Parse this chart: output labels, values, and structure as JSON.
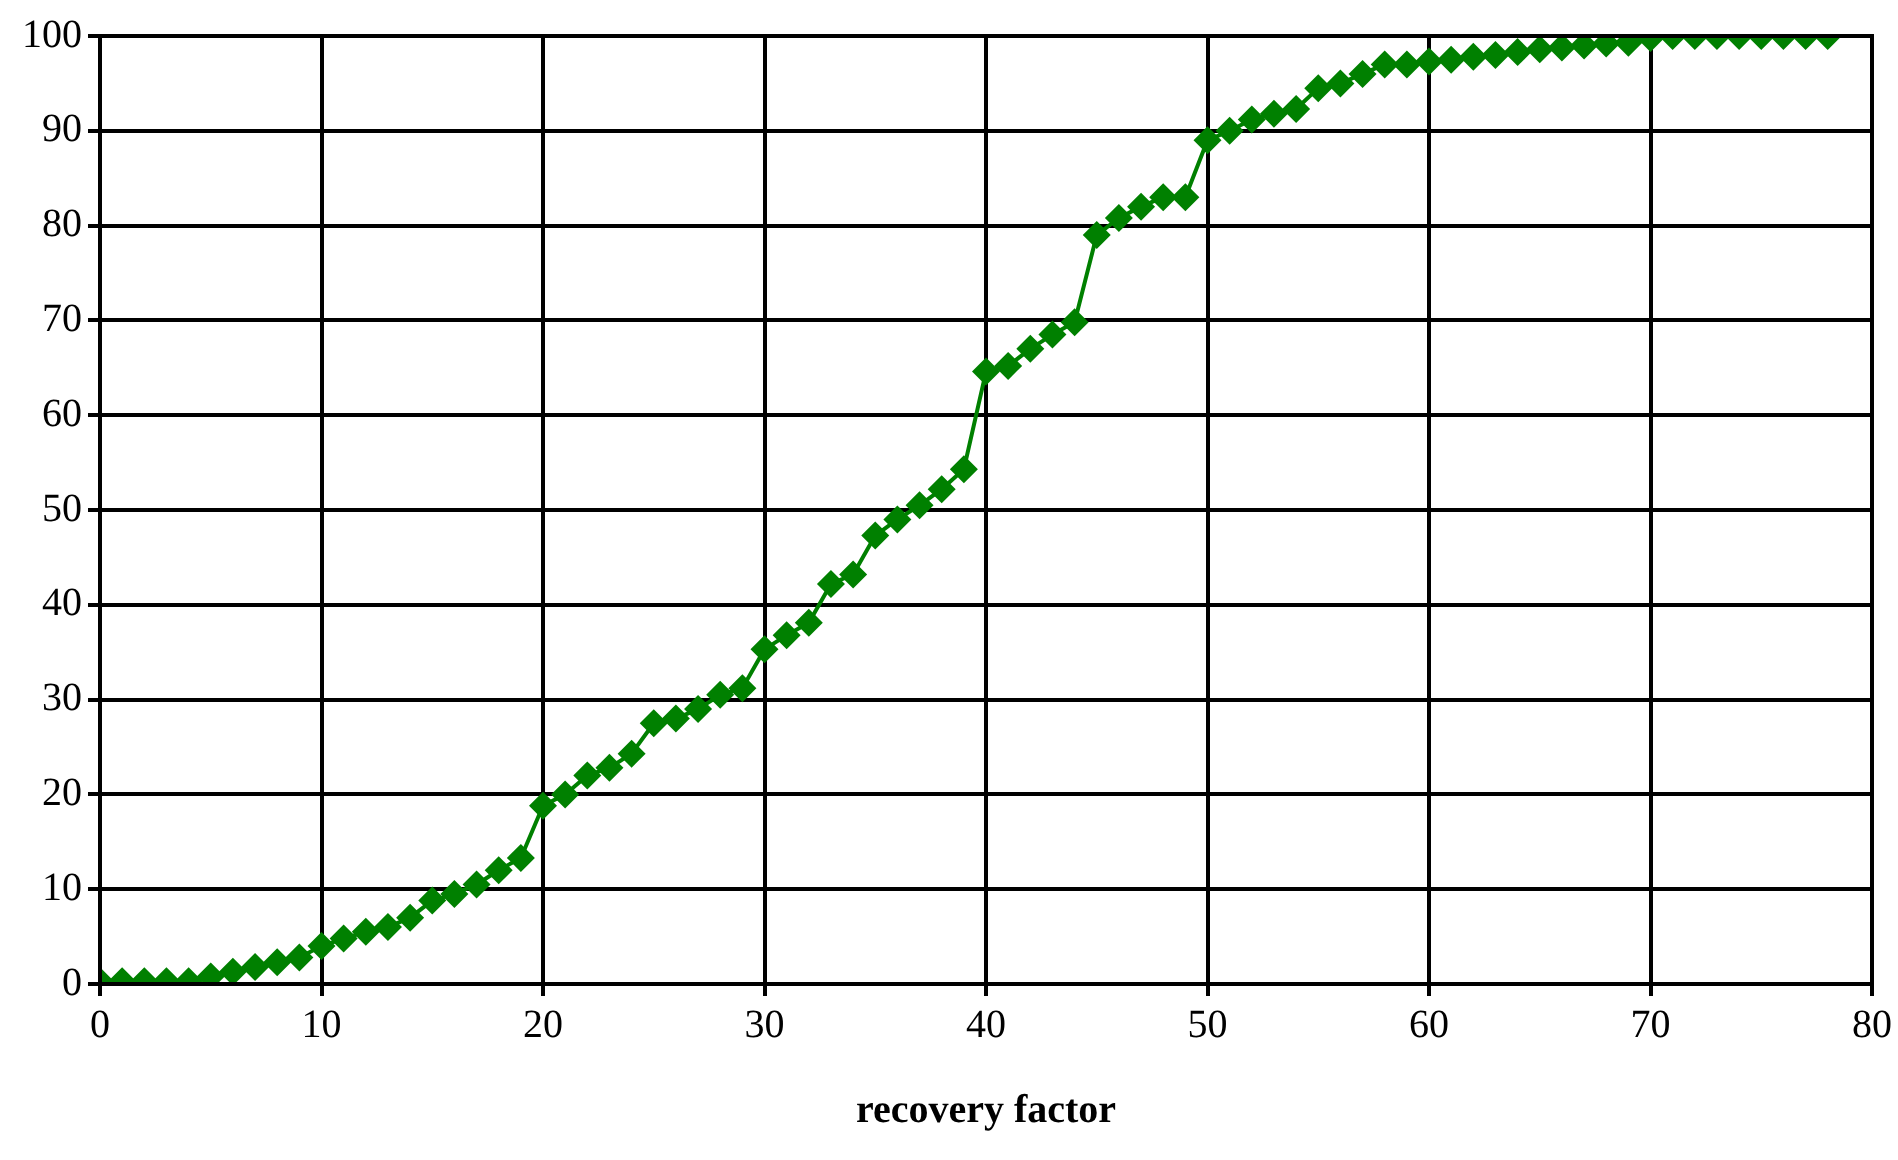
{
  "chart_data": {
    "type": "line",
    "xlabel": "recovery factor",
    "x": [
      0,
      1,
      2,
      3,
      4,
      5,
      6,
      7,
      8,
      9,
      10,
      11,
      12,
      13,
      14,
      15,
      16,
      17,
      18,
      19,
      20,
      21,
      22,
      23,
      24,
      25,
      26,
      27,
      28,
      29,
      30,
      31,
      32,
      33,
      34,
      35,
      36,
      37,
      38,
      39,
      40,
      41,
      42,
      43,
      44,
      45,
      46,
      47,
      48,
      49,
      50,
      51,
      52,
      53,
      54,
      55,
      56,
      57,
      58,
      59,
      60,
      61,
      62,
      63,
      64,
      65,
      66,
      67,
      68,
      69,
      70,
      71,
      72,
      73,
      74,
      75,
      76,
      77,
      78
    ],
    "series": [
      {
        "color": "#008000",
        "values": [
          0.3,
          0.3,
          0.3,
          0.3,
          0.3,
          0.8,
          1.3,
          1.8,
          2.3,
          2.8,
          4,
          4.8,
          5.5,
          6,
          7,
          8.8,
          9.5,
          10.5,
          12,
          13.3,
          18.8,
          20,
          22,
          22.8,
          24.3,
          27.5,
          28,
          29,
          30.5,
          31.2,
          35.3,
          36.8,
          38.1,
          42.2,
          43.2,
          47.3,
          49,
          50.5,
          52.2,
          54.3,
          64.6,
          65.2,
          67,
          68.5,
          69.8,
          79,
          80.8,
          82,
          83,
          83,
          89,
          90,
          91.2,
          91.8,
          92.3,
          94.5,
          95,
          96,
          97,
          97,
          97.3,
          97.5,
          97.8,
          98,
          98.3,
          98.6,
          98.8,
          99,
          99.2,
          99.3,
          99.8,
          100,
          100,
          100,
          100,
          100,
          100,
          100,
          100
        ]
      }
    ],
    "xlim": [
      0,
      80
    ],
    "xticks": [
      0,
      10,
      20,
      30,
      40,
      50,
      60,
      70,
      80
    ],
    "ylim": [
      0,
      100
    ],
    "yticks": [
      0,
      10,
      20,
      30,
      40,
      50,
      60,
      70,
      80,
      90,
      100
    ],
    "grid": true,
    "legend": false,
    "marker": "diamond",
    "line_style": "solid"
  }
}
